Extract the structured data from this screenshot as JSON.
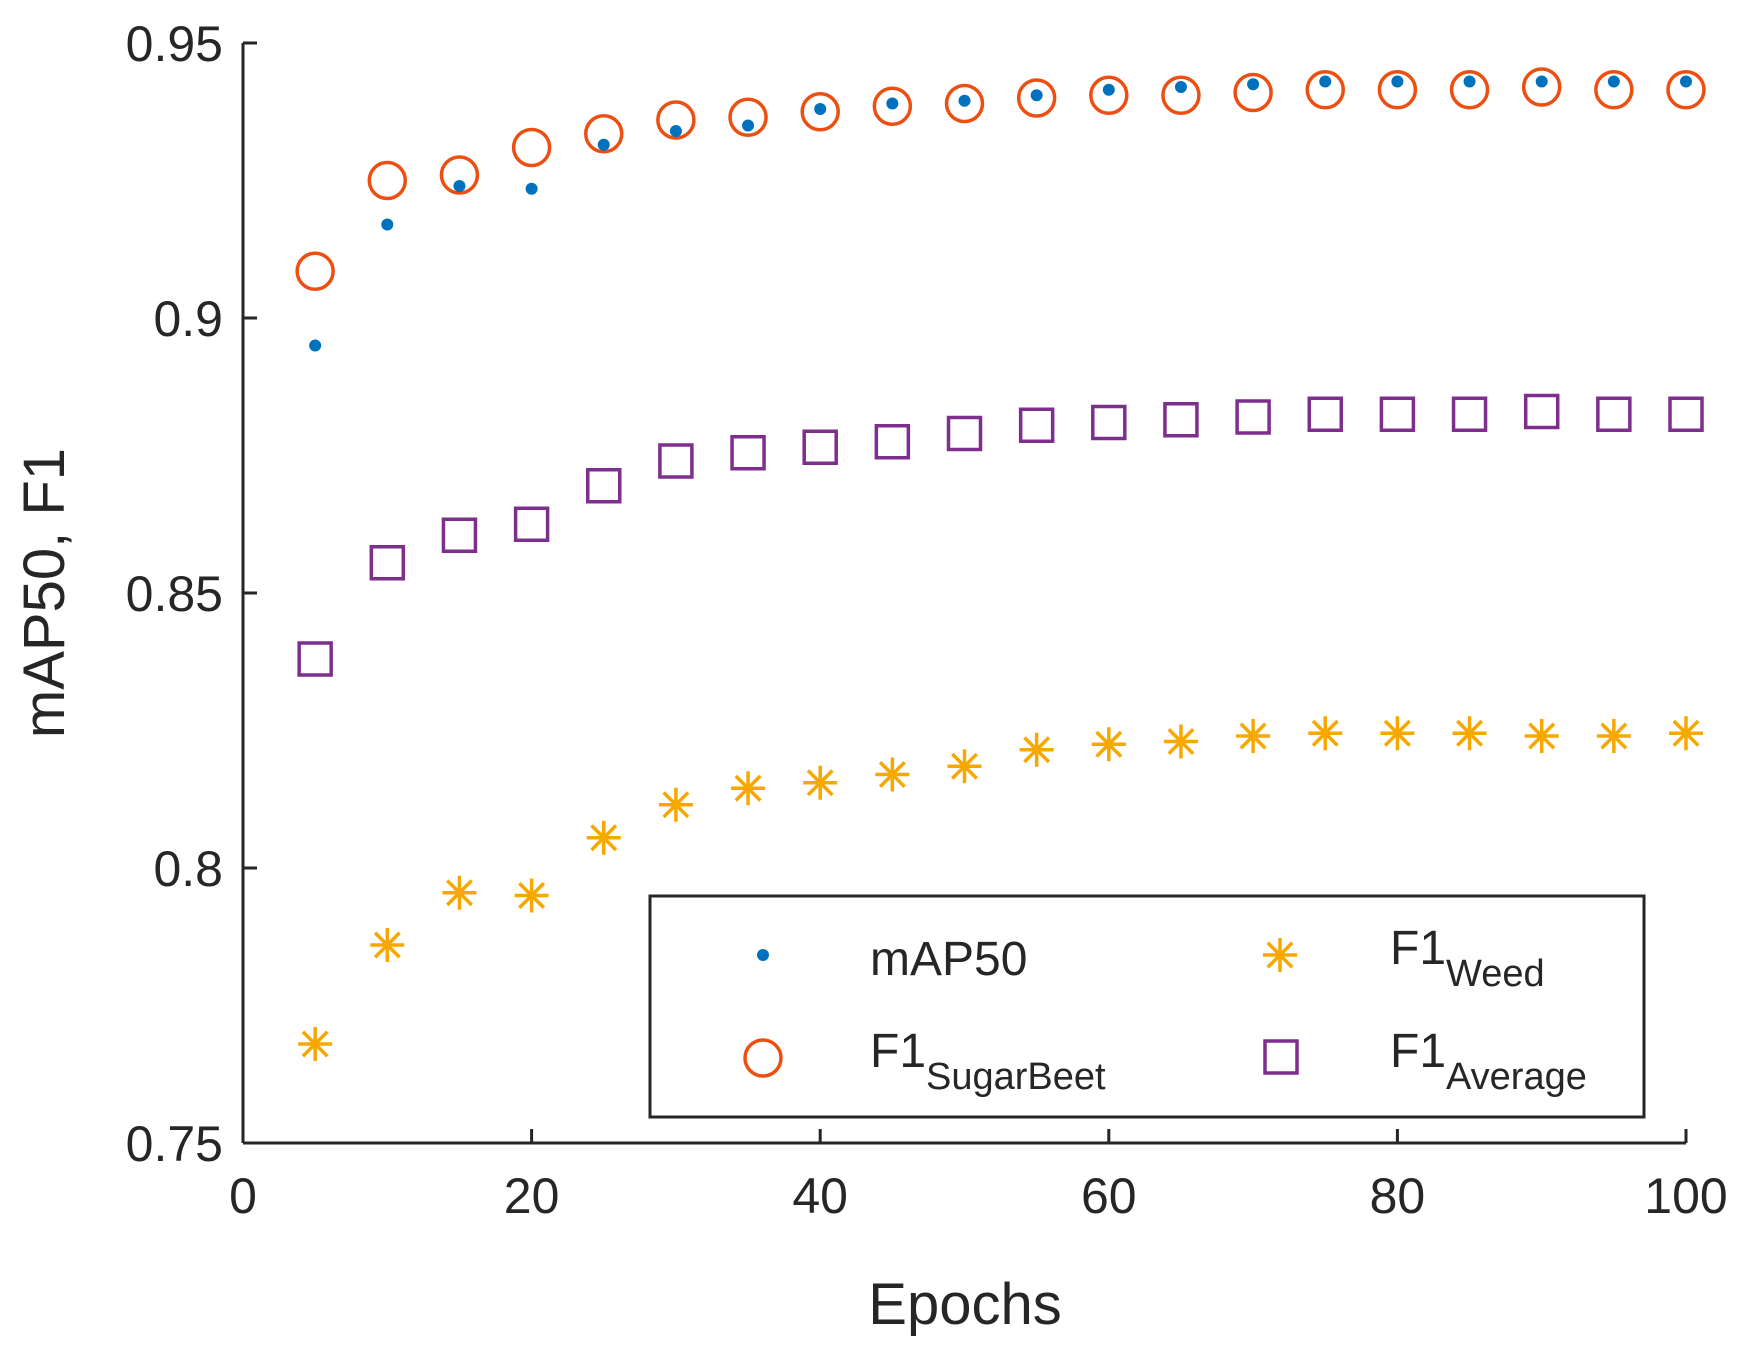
{
  "chart_data": {
    "type": "scatter",
    "title": "",
    "xlabel": "Epochs",
    "ylabel": "mAP50, F1",
    "xlim": [
      0,
      100
    ],
    "ylim": [
      0.75,
      0.95
    ],
    "xticks": [
      0,
      20,
      40,
      60,
      80,
      100
    ],
    "xtick_labels": [
      "0",
      "20",
      "40",
      "60",
      "80",
      "100"
    ],
    "yticks": [
      0.75,
      0.8,
      0.85,
      0.9,
      0.95
    ],
    "ytick_labels": [
      "0.75",
      "0.8",
      "0.85",
      "0.9",
      "0.95"
    ],
    "grid": false,
    "legend_position": "bottom-right",
    "x": [
      5,
      10,
      15,
      20,
      25,
      30,
      35,
      40,
      45,
      50,
      55,
      60,
      65,
      70,
      75,
      80,
      85,
      90,
      95,
      100
    ],
    "series": [
      {
        "name": "mAP50",
        "legend_main": "mAP50",
        "legend_sub": "",
        "marker": "dot",
        "color": "#0072BD",
        "values": [
          0.895,
          0.917,
          0.924,
          0.9235,
          0.9315,
          0.934,
          0.935,
          0.938,
          0.939,
          0.9395,
          0.9405,
          0.9415,
          0.942,
          0.9425,
          0.943,
          0.943,
          0.943,
          0.943,
          0.943,
          0.943
        ]
      },
      {
        "name": "F1 SugarBeet",
        "legend_main": "F1",
        "legend_sub": "SugarBeet",
        "marker": "circle",
        "color": "#ED4F12",
        "values": [
          0.9085,
          0.925,
          0.926,
          0.931,
          0.9335,
          0.936,
          0.9365,
          0.9375,
          0.9385,
          0.939,
          0.94,
          0.9405,
          0.9405,
          0.941,
          0.9415,
          0.9415,
          0.9415,
          0.942,
          0.9415,
          0.9415
        ]
      },
      {
        "name": "F1 Weed",
        "legend_main": "F1",
        "legend_sub": "Weed",
        "marker": "asterisk",
        "color": "#F7A800",
        "values": [
          0.768,
          0.786,
          0.7955,
          0.795,
          0.8055,
          0.8115,
          0.8145,
          0.8155,
          0.817,
          0.8185,
          0.8215,
          0.8225,
          0.823,
          0.824,
          0.8245,
          0.8245,
          0.8245,
          0.824,
          0.824,
          0.8245
        ]
      },
      {
        "name": "F1 Average",
        "legend_main": "F1",
        "legend_sub": "Average",
        "marker": "square",
        "color": "#7E2F8E",
        "values": [
          0.838,
          0.8555,
          0.8605,
          0.8625,
          0.8695,
          0.874,
          0.8755,
          0.8765,
          0.8775,
          0.879,
          0.8805,
          0.881,
          0.8815,
          0.882,
          0.8825,
          0.8825,
          0.8825,
          0.883,
          0.8825,
          0.8825
        ]
      }
    ]
  }
}
